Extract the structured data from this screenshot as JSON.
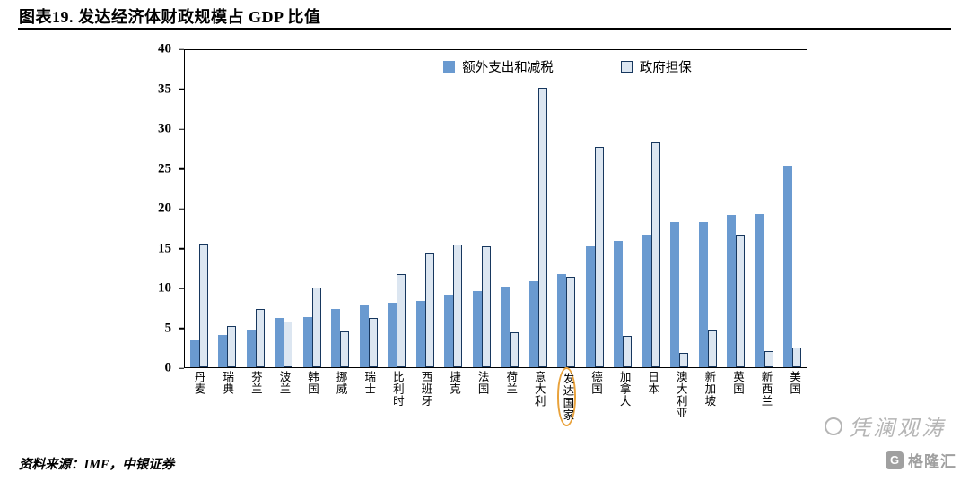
{
  "header": {
    "title": "图表19. 发达经济体财政规模占 GDP 比值"
  },
  "footer": {
    "source": "资料来源：IMF，中银证券"
  },
  "watermark": {
    "script": "凭澜观涛",
    "logo_glyph": "G",
    "logo_text": "格隆汇"
  },
  "chart_data": {
    "type": "bar",
    "title": "发达经济体财政规模占 GDP 比值",
    "xlabel": "",
    "ylabel": "",
    "ylim": [
      0,
      40
    ],
    "yticks": [
      0,
      5,
      10,
      15,
      20,
      25,
      30,
      35,
      40
    ],
    "grid": false,
    "legend_position": "top-center",
    "highlight_category": "发达国家",
    "highlight_color": "#E9A23B",
    "categories": [
      "丹麦",
      "瑞典",
      "芬兰",
      "波兰",
      "韩国",
      "挪威",
      "瑞士",
      "比利时",
      "西班牙",
      "捷克",
      "法国",
      "荷兰",
      "意大利",
      "发达国家",
      "德国",
      "加拿大",
      "日本",
      "澳大利亚",
      "新加坡",
      "英国",
      "新西兰",
      "美国"
    ],
    "series": [
      {
        "name": "额外支出和减税",
        "style": "solid",
        "color": "#6A9AD0",
        "values": [
          3.4,
          4.1,
          4.7,
          6.2,
          6.3,
          7.3,
          7.8,
          8.1,
          8.4,
          9.1,
          9.6,
          10.2,
          10.8,
          11.7,
          15.3,
          15.9,
          16.7,
          18.3,
          18.3,
          19.2,
          19.3,
          25.4
        ]
      },
      {
        "name": "政府担保",
        "style": "outline",
        "fill": "#DCE6F1",
        "border": "#17375E",
        "values": [
          15.6,
          5.2,
          7.3,
          5.8,
          10.1,
          4.5,
          6.2,
          11.8,
          14.4,
          15.5,
          15.2,
          4.4,
          35.3,
          11.4,
          27.8,
          4.0,
          28.4,
          1.8,
          4.7,
          16.7,
          2.0,
          2.5
        ]
      }
    ]
  }
}
